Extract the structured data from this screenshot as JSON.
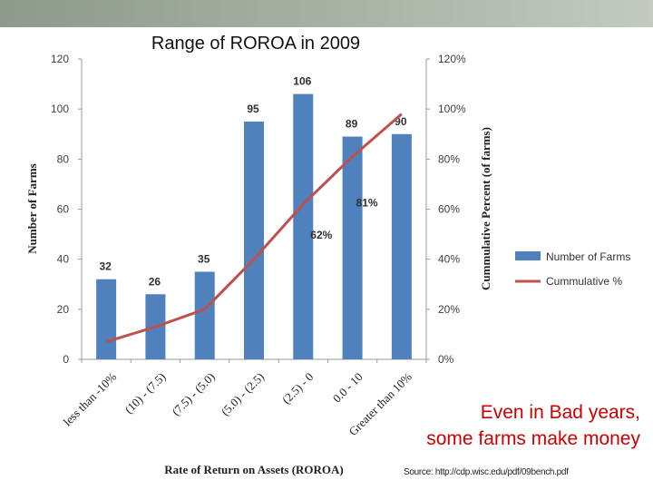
{
  "chart_data": {
    "type": "bar",
    "title": "Range of ROROA in 2009",
    "xlabel": "Rate of Return on Assets (ROROA)",
    "ylabel": "Number of Farms",
    "y2label": "Cummulative Percent (of farms)",
    "categories": [
      "less than -10%",
      "(10) - (7.5)",
      "(7.5) - (5.0)",
      "(5.0) - (2.5)",
      "(2.5) - 0",
      "0.0 - 10",
      "Greater than 10%"
    ],
    "series": [
      {
        "name": "Number of Farms",
        "type": "bar",
        "axis": "left",
        "color": "#4f81bd",
        "values": [
          32,
          26,
          35,
          95,
          106,
          89,
          90
        ]
      },
      {
        "name": "Cummulative %",
        "type": "line",
        "axis": "right",
        "color": "#c0504d",
        "values": [
          7,
          13,
          20,
          40,
          62,
          81,
          98
        ]
      }
    ],
    "ylim": [
      0,
      120
    ],
    "yticks": [
      0,
      20,
      40,
      60,
      80,
      100,
      120
    ],
    "y2lim": [
      0,
      120
    ],
    "y2ticks": [
      "0%",
      "20%",
      "40%",
      "60%",
      "80%",
      "100%",
      "120%"
    ],
    "bar_labels": [
      "32",
      "26",
      "35",
      "95",
      "106",
      "89",
      "90"
    ],
    "line_labels": [
      {
        "index": 4,
        "text": "62%"
      },
      {
        "index": 5,
        "text": "81%"
      }
    ],
    "grid": false,
    "legend_position": "right"
  },
  "callout": {
    "line1": "Even in Bad years,",
    "line2": "some farms make money"
  },
  "source": "Source: http://cdp.wisc.edu/pdf/09bench.pdf"
}
